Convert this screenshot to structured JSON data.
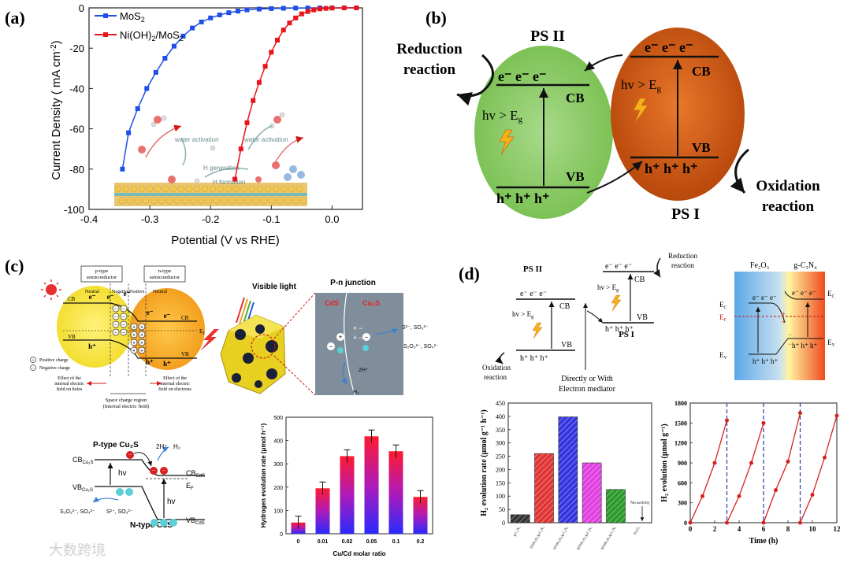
{
  "panels": {
    "a": {
      "label": "(a)",
      "legend": [
        {
          "name": "MoS",
          "sub": "2",
          "color": "#1f4fe8"
        },
        {
          "name": "Ni(OH)",
          "sub": "2",
          "tail": "/MoS",
          "sub2": "2",
          "color": "#e8141c"
        }
      ],
      "xlabel": "Potential (V vs RHE)",
      "ylabel": "Current Density  ( mA cm",
      "ylabel_sup": "-2",
      "ylabel_tail": ")",
      "inset": {
        "water_activation_1": "water activation",
        "water_activation_2": "water activation",
        "h2_generation": "H  generation",
        "h_formation": "H  formation"
      }
    },
    "b": {
      "label": "(b)",
      "ps2": "PS II",
      "ps1": "PS I",
      "reduction": [
        "Reduction",
        "reaction"
      ],
      "oxidation": [
        "Oxidation",
        "reaction"
      ],
      "cb": "CB",
      "vb": "VB",
      "hv": "hv > E",
      "hv_sub": "g",
      "electrons": "e⁻ e⁻ e⁻",
      "holes": "h⁺ h⁺ h⁺"
    },
    "c": {
      "label": "(c)",
      "p_type": [
        "p-type",
        "semiconductor"
      ],
      "n_type": [
        "n-type",
        "semiconductor"
      ],
      "neutral": "Neutral",
      "negative": "Negative",
      "positive": "Positive",
      "neutral2": "Neutral",
      "legend_pos": "Positive charge",
      "legend_neg": "Negative charge",
      "effect_holes": [
        "Effect of the",
        "internal electric",
        "field on holes"
      ],
      "effect_electrons": [
        "Effect of the",
        "internal electric",
        "field on electrons"
      ],
      "space_charge": [
        "Space charge region",
        "(Internal electric field)"
      ],
      "visible_light": "Visible light",
      "pn_junction": "P-n junction",
      "cds": "CdS",
      "cu2s": "Cu₂S",
      "s_ions": "S²⁻, SO₃²⁻",
      "s_products": "S₂O₃²⁻, SO₄²⁻",
      "two_h": "2H⁺",
      "h2": "H₂",
      "bottom": {
        "p_type": "P-type Cu₂S",
        "n_type": "N-type CdS",
        "cb_cu2s": "CB",
        "cb_cu2s_sub": "Cu₂S",
        "vb_cu2s": "VB",
        "vb_cu2s_sub": "Cu₂S",
        "cb_cds": "CB",
        "cb_cds_sub": "CdS",
        "vb_cds": "VB",
        "vb_cds_sub": "CdS",
        "ef": "E",
        "ef_sub": "F",
        "hv1": "hv",
        "hv2": "hv",
        "twoh": "2H⁺",
        "h2": "H₂",
        "s_left": "S₂O₃²⁻, SO₄²⁻",
        "s_right": "S²⁻, SO₃²⁻"
      }
    },
    "d": {
      "label": "(d)",
      "ps2": "PS II",
      "ps1": "PS I",
      "reduction": [
        "Reduction",
        "reaction"
      ],
      "oxidation": [
        "Oxidation",
        "reaction"
      ],
      "mediator": [
        "Directly or With",
        "Electron mediator"
      ],
      "cb": "CB",
      "vb": "VB",
      "hv": "hv > E",
      "hv_sub": "g",
      "electrons": "e⁻ e⁻ e⁻",
      "holes": "h⁺ h⁺ h⁺",
      "fe2o3": "Fe₂O₃",
      "gc3n4": "g-C₃N₄",
      "ec": "E",
      "ec_sub": "C",
      "ef": "E",
      "ef_sub": "F",
      "ev": "E",
      "ev_sub": "V",
      "no_activity": [
        "No activity"
      ]
    }
  },
  "chart_data": [
    {
      "id": "a",
      "type": "line",
      "xlabel": "Potential (V vs RHE)",
      "ylabel": "Current Density (mA cm-2)",
      "xlim": [
        -0.4,
        0.05
      ],
      "ylim": [
        -100,
        0
      ],
      "xticks": [
        "-0.4",
        "-0.3",
        "-0.2",
        "-0.1",
        "0.0"
      ],
      "yticks": [
        "0",
        "-20",
        "-40",
        "-60",
        "-80",
        "-100"
      ],
      "series": [
        {
          "name": "MoS2",
          "color": "#1f4fe8",
          "marker": "square",
          "x": [
            -0.345,
            -0.335,
            -0.32,
            -0.305,
            -0.29,
            -0.275,
            -0.26,
            -0.245,
            -0.23,
            -0.215,
            -0.2,
            -0.185,
            -0.17,
            -0.155,
            -0.14,
            -0.12,
            -0.1,
            -0.08,
            -0.06,
            -0.04,
            -0.02,
            0.0,
            0.02,
            0.04
          ],
          "y": [
            -80,
            -62,
            -50,
            -40,
            -32,
            -25,
            -19,
            -14,
            -10,
            -7,
            -5,
            -3.5,
            -2.4,
            -1.6,
            -1.0,
            -0.6,
            -0.35,
            -0.2,
            -0.1,
            -0.05,
            -0.02,
            0,
            0,
            0
          ]
        },
        {
          "name": "Ni(OH)2/MoS2",
          "color": "#e8141c",
          "marker": "square",
          "x": [
            -0.16,
            -0.15,
            -0.14,
            -0.13,
            -0.12,
            -0.11,
            -0.1,
            -0.09,
            -0.08,
            -0.07,
            -0.06,
            -0.05,
            -0.04,
            -0.03,
            -0.02,
            -0.01,
            0.0,
            0.02,
            0.04
          ],
          "y": [
            -85,
            -70,
            -57,
            -46,
            -37,
            -29,
            -22,
            -16,
            -11,
            -7.5,
            -5,
            -3,
            -1.8,
            -1.0,
            -0.5,
            -0.25,
            -0.1,
            0,
            0
          ]
        }
      ]
    },
    {
      "id": "c-bar",
      "type": "bar",
      "xlabel": "Cu/Cd molar ratio",
      "ylabel": "Hydrogen evolution rate (μmol h⁻¹)",
      "categories": [
        "0",
        "0.01",
        "0.02",
        "0.05",
        "0.1",
        "0.2"
      ],
      "values": [
        48,
        195,
        333,
        418,
        354,
        158
      ],
      "ylim": [
        0,
        500
      ],
      "yticks": [
        "0",
        "100",
        "200",
        "300",
        "400",
        "500"
      ]
    },
    {
      "id": "d-bar",
      "type": "bar",
      "xlabel": "",
      "ylabel": "H₂ evolution rate (μmol g⁻¹ h⁻¹)",
      "categories": [
        "g-C₃N₄",
        "5%Fe₂O₃/g-C₃N₄",
        "10%Fe₂O₃/g-C₃N₄",
        "20%Fe₂O₃/g-C₃N₄",
        "30%Fe₂O₃/g-C₃N₄",
        "Fe₂O₃"
      ],
      "values": [
        30,
        260,
        398,
        225,
        125,
        0
      ],
      "colors": [
        "#333333",
        "#e03535",
        "#3535e0",
        "#e040e0",
        "#2a9a2a",
        "#888888"
      ],
      "ylim": [
        0,
        450
      ],
      "yticks": [
        "0",
        "50",
        "100",
        "150",
        "200",
        "250",
        "300",
        "350",
        "400",
        "450"
      ]
    },
    {
      "id": "d-time",
      "type": "line",
      "xlabel": "Time (h)",
      "ylabel": "H₂ evolution (μmol g⁻¹)",
      "xlim": [
        0,
        12
      ],
      "ylim": [
        0,
        1800
      ],
      "xticks": [
        "0",
        "2",
        "4",
        "6",
        "8",
        "10",
        "12"
      ],
      "yticks": [
        "0",
        "300",
        "600",
        "900",
        "1200",
        "1500",
        "1800"
      ],
      "cycle_lines": [
        3,
        6,
        9
      ],
      "series": [
        {
          "name": "cycle1",
          "x": [
            0,
            1,
            2,
            3
          ],
          "y": [
            0,
            400,
            900,
            1540
          ]
        },
        {
          "name": "cycle2",
          "x": [
            3,
            4,
            5,
            6
          ],
          "y": [
            0,
            400,
            900,
            1500
          ]
        },
        {
          "name": "cycle3",
          "x": [
            6,
            7,
            8,
            9
          ],
          "y": [
            0,
            490,
            920,
            1650
          ]
        },
        {
          "name": "cycle4",
          "x": [
            9,
            10,
            11,
            12
          ],
          "y": [
            0,
            420,
            980,
            1610
          ]
        }
      ]
    }
  ],
  "watermark": "大数跨境"
}
